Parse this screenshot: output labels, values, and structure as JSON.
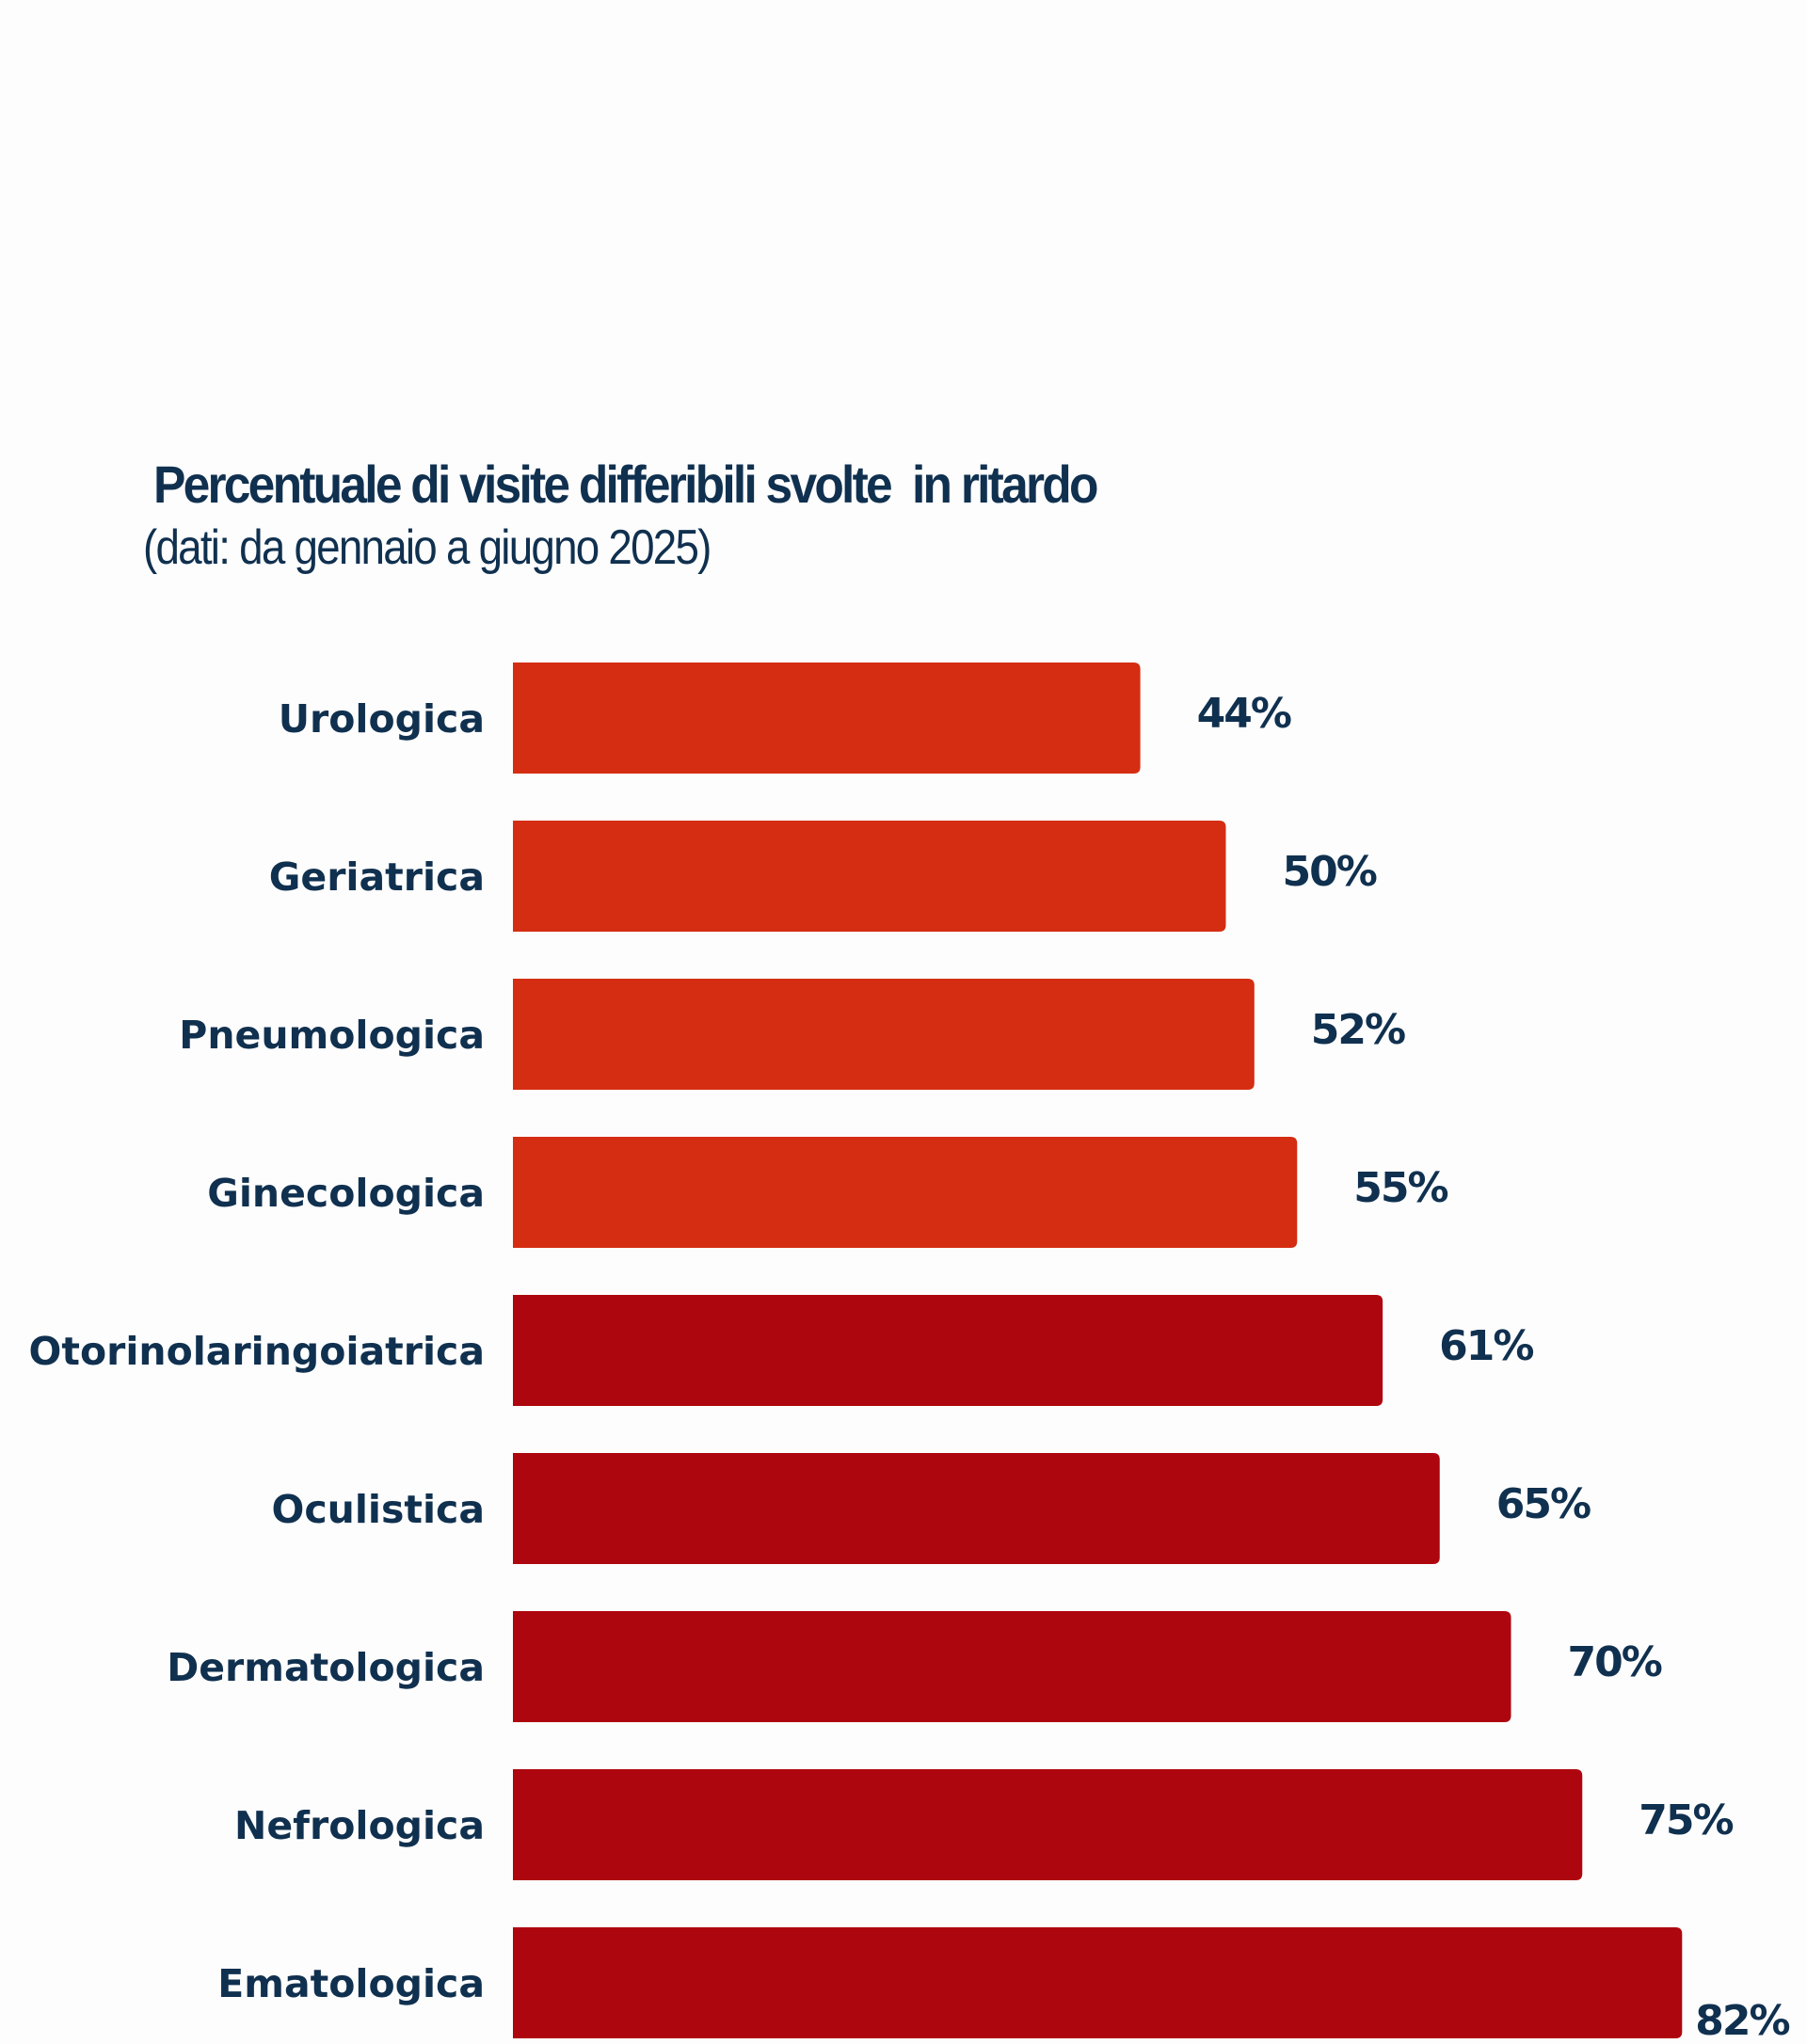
{
  "chart_data": {
    "type": "bar",
    "orientation": "horizontal",
    "title": "Percentuale di visite differibili svolte  in ritardo",
    "subtitle": "(dati: da gennaio a giugno 2025)",
    "categories": [
      "Urologica",
      "Geriatrica",
      "Pneumologica",
      "Ginecologica",
      "Otorinolaringoiatrica",
      "Oculistica",
      "Dermatologica",
      "Nefrologica",
      "Ematologica"
    ],
    "values": [
      44,
      50,
      52,
      55,
      61,
      65,
      70,
      75,
      82
    ],
    "value_labels": [
      "44%",
      "50%",
      "52%",
      "55%",
      "61%",
      "65%",
      "70%",
      "75%",
      "82%"
    ],
    "unit": "%",
    "xlim": [
      0,
      100
    ],
    "grid": false,
    "colors": {
      "group_low": "#d42d12",
      "group_high": "#ae060e",
      "text": "#10304f"
    },
    "color_groups": [
      "group_low",
      "group_low",
      "group_low",
      "group_low",
      "group_high",
      "group_high",
      "group_high",
      "group_high",
      "group_high"
    ]
  }
}
